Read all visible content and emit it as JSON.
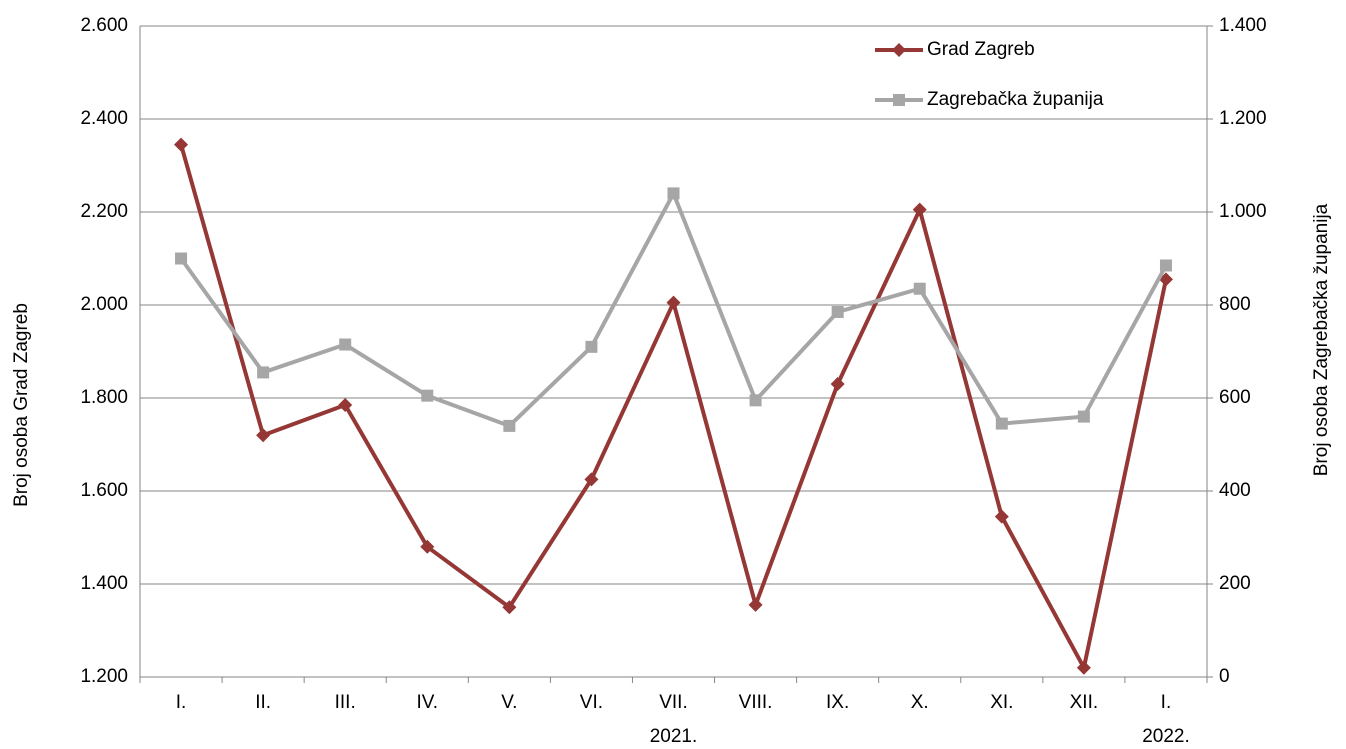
{
  "chart_data": {
    "type": "line",
    "categories": [
      "I.",
      "II.",
      "III.",
      "IV.",
      "V.",
      "VI.",
      "VII.",
      "VIII.",
      "IX.",
      "X.",
      "XI.",
      "XII.",
      "I."
    ],
    "year_labels": [
      null,
      null,
      null,
      null,
      null,
      null,
      "2021.",
      null,
      null,
      null,
      null,
      null,
      "2022."
    ],
    "y_label": "Broj osoba Grad Zagreb",
    "y2_label": "Broj osoba Zagrebačka županija",
    "ylim": [
      1200,
      2600
    ],
    "yticks": [
      {
        "value": 1200,
        "label": "1.200"
      },
      {
        "value": 1400,
        "label": "1.400"
      },
      {
        "value": 1600,
        "label": "1.600"
      },
      {
        "value": 1800,
        "label": "1.800"
      },
      {
        "value": 2000,
        "label": "2.000"
      },
      {
        "value": 2200,
        "label": "2.200"
      },
      {
        "value": 2400,
        "label": "2.400"
      },
      {
        "value": 2600,
        "label": "2.600"
      }
    ],
    "y2lim": [
      0,
      1400
    ],
    "y2ticks": [
      0,
      200,
      400,
      600,
      800,
      {
        "value": 1000,
        "label": "1.000"
      },
      {
        "value": 1200,
        "label": "1.200"
      },
      {
        "value": 1400,
        "label": "1.400"
      }
    ],
    "grid": true,
    "legend": "top-right",
    "series": [
      {
        "name": "Grad Zagreb",
        "color": "#953735",
        "marker": "diamond",
        "values": [
          2345,
          1720,
          1785,
          1480,
          1350,
          1625,
          2005,
          1355,
          1830,
          2205,
          1545,
          1220,
          2055
        ]
      },
      {
        "name": "Zagrebačka županija",
        "color": "#a6a6a6",
        "marker": "square",
        "axis": "y2",
        "values": [
          900,
          655,
          715,
          605,
          540,
          710,
          1040,
          595,
          785,
          835,
          545,
          560,
          885
        ]
      }
    ]
  }
}
